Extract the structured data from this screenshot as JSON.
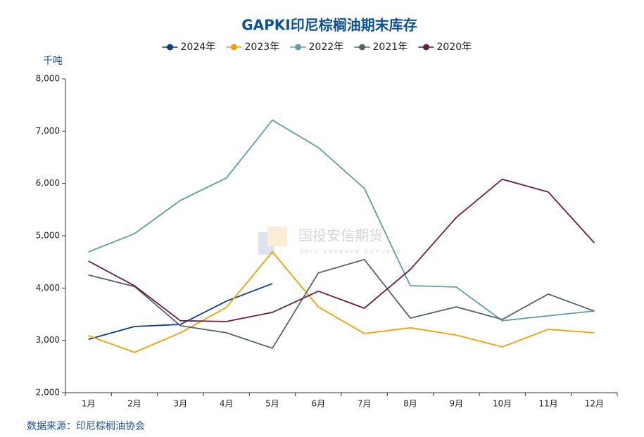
{
  "chart_data": {
    "type": "line",
    "title": "GAPKI印尼棕榈油期末库存",
    "y_axis_label": "千吨",
    "source": "数据来源：印尼棕榈油协会",
    "watermark": "国投安信期货",
    "watermark_sub": "SDIC ESSENCE FUTURES",
    "categories": [
      "1月",
      "2月",
      "3月",
      "4月",
      "5月",
      "6月",
      "7月",
      "8月",
      "9月",
      "10月",
      "11月",
      "12月"
    ],
    "series": [
      {
        "name": "2024年",
        "color": "#0a3c8c",
        "values": [
          3020,
          3265,
          3305,
          3750,
          4085,
          null,
          null,
          null,
          null,
          null,
          null,
          null
        ]
      },
      {
        "name": "2023年",
        "color": "#f0a000",
        "values": [
          3090,
          2770,
          3145,
          3630,
          4690,
          3640,
          3130,
          3240,
          3100,
          2875,
          3210,
          3145
        ]
      },
      {
        "name": "2022年",
        "color": "#5f9ea8",
        "values": [
          4690,
          5040,
          5675,
          6105,
          7210,
          6685,
          5905,
          4045,
          4020,
          3375,
          3470,
          3560
        ]
      },
      {
        "name": "2021年",
        "color": "#56636e",
        "values": [
          4250,
          4030,
          3280,
          3145,
          2850,
          4290,
          4545,
          3425,
          3640,
          3400,
          3885,
          3560
        ]
      },
      {
        "name": "2020年",
        "color": "#6b1a45",
        "values": [
          4515,
          4045,
          3375,
          3360,
          3535,
          3940,
          3615,
          4355,
          5350,
          6080,
          5835,
          4865
        ]
      }
    ],
    "ylim": [
      2000,
      8000
    ],
    "yticks": [
      {
        "value": 2000,
        "label": "2,000"
      },
      {
        "value": 3000,
        "label": "3,000"
      },
      {
        "value": 4000,
        "label": "4,000"
      },
      {
        "value": 5000,
        "label": "5,000"
      },
      {
        "value": 6000,
        "label": "6,000"
      },
      {
        "value": 7000,
        "label": "7,000"
      },
      {
        "value": 8000,
        "label": "8,000"
      }
    ],
    "grid": false,
    "legend": "top"
  }
}
